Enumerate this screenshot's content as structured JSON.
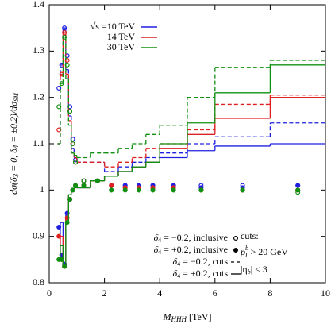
{
  "chart_data": {
    "type": "step",
    "x_label": [
      "M",
      "HHH",
      " [TeV]"
    ],
    "y_label": [
      "dσ(δ",
      "3",
      " = 0, δ",
      "4",
      " = ±0.2)/dσ",
      "SM"
    ],
    "xlim": [
      0,
      10
    ],
    "xticks": [
      0,
      2,
      4,
      6,
      8,
      10
    ],
    "ylim": [
      0.8,
      1.4
    ],
    "yticks": [
      0.8,
      0.9,
      1,
      1.1,
      1.2,
      1.3,
      1.4
    ],
    "bins": [
      0.3,
      0.4,
      0.5,
      0.6,
      0.7,
      0.8,
      0.9,
      1.0,
      1.5,
      2.0,
      2.5,
      3.0,
      3.5,
      4.0,
      5.0,
      6.0,
      8.0,
      10.0
    ],
    "x": [
      0.35,
      0.45,
      0.55,
      0.65,
      0.75,
      0.85,
      0.95,
      1.25,
      1.75,
      2.25,
      2.75,
      3.25,
      3.75,
      4.5,
      5.5,
      7,
      9
    ],
    "styles": [
      {
        "label": [
          "δ",
          "4",
          " = −0.2, inclusive"
        ],
        "marker": "open-circle"
      },
      {
        "label": [
          "δ",
          "4",
          " = +0.2, inclusive"
        ],
        "marker": "filled-circle"
      },
      {
        "label": [
          "δ",
          "4",
          " = −0.2, cuts"
        ],
        "marker": "dashed"
      },
      {
        "label": [
          "δ",
          "4",
          " = +0.2, cuts"
        ],
        "marker": "solid"
      }
    ],
    "series": [
      {
        "name": "√s =10 TeV",
        "color": "#2020e0",
        "values": [
          [
            1.22,
            1.27,
            1.35,
            1.29,
            1.18,
            1.11,
            1.065,
            1.02,
            1.02,
            1.01,
            1.01,
            1.01,
            1.01,
            1.01,
            1.01,
            1.01,
            1.01
          ],
          [
            0.92,
            0.86,
            0.84,
            0.95,
            0.98,
            1.0,
            1.01,
            1.01,
            1.02,
            1.01,
            1.01,
            1.01,
            1.01,
            1.01,
            1.005,
            1.005,
            1.01
          ],
          [
            1.1,
            1.27,
            1.35,
            1.26,
            1.16,
            1.09,
            1.07,
            1.06,
            1.06,
            1.04,
            1.05,
            1.06,
            1.07,
            1.08,
            1.1,
            1.115,
            1.145
          ],
          [
            0.85,
            0.93,
            0.84,
            0.95,
            0.99,
            1.0,
            1.005,
            1.005,
            1.02,
            1.03,
            1.04,
            1.05,
            1.06,
            1.07,
            1.085,
            1.095,
            1.1
          ]
        ]
      },
      {
        "name": "14 TeV",
        "color": "#e02020",
        "values": [
          [
            1.13,
            1.25,
            1.34,
            1.28,
            1.17,
            1.1,
            1.06,
            1.02,
            1.02,
            1.01,
            1.005,
            1.005,
            1.005,
            1.005,
            1.0,
            1.0,
            1.0
          ],
          [
            0.9,
            0.85,
            0.835,
            0.94,
            0.98,
            1.0,
            1.01,
            1.01,
            1.02,
            1.01,
            1.005,
            1.005,
            1.005,
            1.005,
            1.0,
            1.0,
            1.0
          ],
          [
            1.1,
            1.25,
            1.34,
            1.25,
            1.15,
            1.08,
            1.07,
            1.06,
            1.06,
            1.05,
            1.06,
            1.07,
            1.09,
            1.1,
            1.13,
            1.185,
            1.205
          ],
          [
            0.85,
            0.9,
            0.835,
            0.94,
            0.99,
            1.0,
            1.005,
            1.005,
            1.02,
            1.03,
            1.04,
            1.05,
            1.06,
            1.09,
            1.12,
            1.155,
            1.2
          ]
        ]
      },
      {
        "name": "30 TeV",
        "color": "#109010",
        "values": [
          [
            1.18,
            1.23,
            1.33,
            1.27,
            1.17,
            1.1,
            1.06,
            1.02,
            1.02,
            1.0,
            1.0,
            1.0,
            1.0,
            1.0,
            1.0,
            1.0,
            0.995
          ],
          [
            0.85,
            0.85,
            0.835,
            0.93,
            0.98,
            1.0,
            1.01,
            1.01,
            1.02,
            1.0,
            1.0,
            1.0,
            1.0,
            1.0,
            1.0,
            1.0,
            1.0
          ],
          [
            1.1,
            1.23,
            1.33,
            1.24,
            1.14,
            1.08,
            1.075,
            1.07,
            1.08,
            1.08,
            1.09,
            1.1,
            1.12,
            1.14,
            1.2,
            1.265,
            1.28
          ],
          [
            0.85,
            0.88,
            0.835,
            0.93,
            0.99,
            1.0,
            1.005,
            1.005,
            1.02,
            1.03,
            1.04,
            1.05,
            1.06,
            1.1,
            1.145,
            1.21,
            1.27
          ]
        ]
      }
    ],
    "cuts": {
      "title": "cuts:",
      "pt": [
        "p",
        "b",
        "T",
        " > 20 GeV"
      ],
      "eta": [
        "|η",
        "b",
        "| < 3"
      ]
    }
  }
}
